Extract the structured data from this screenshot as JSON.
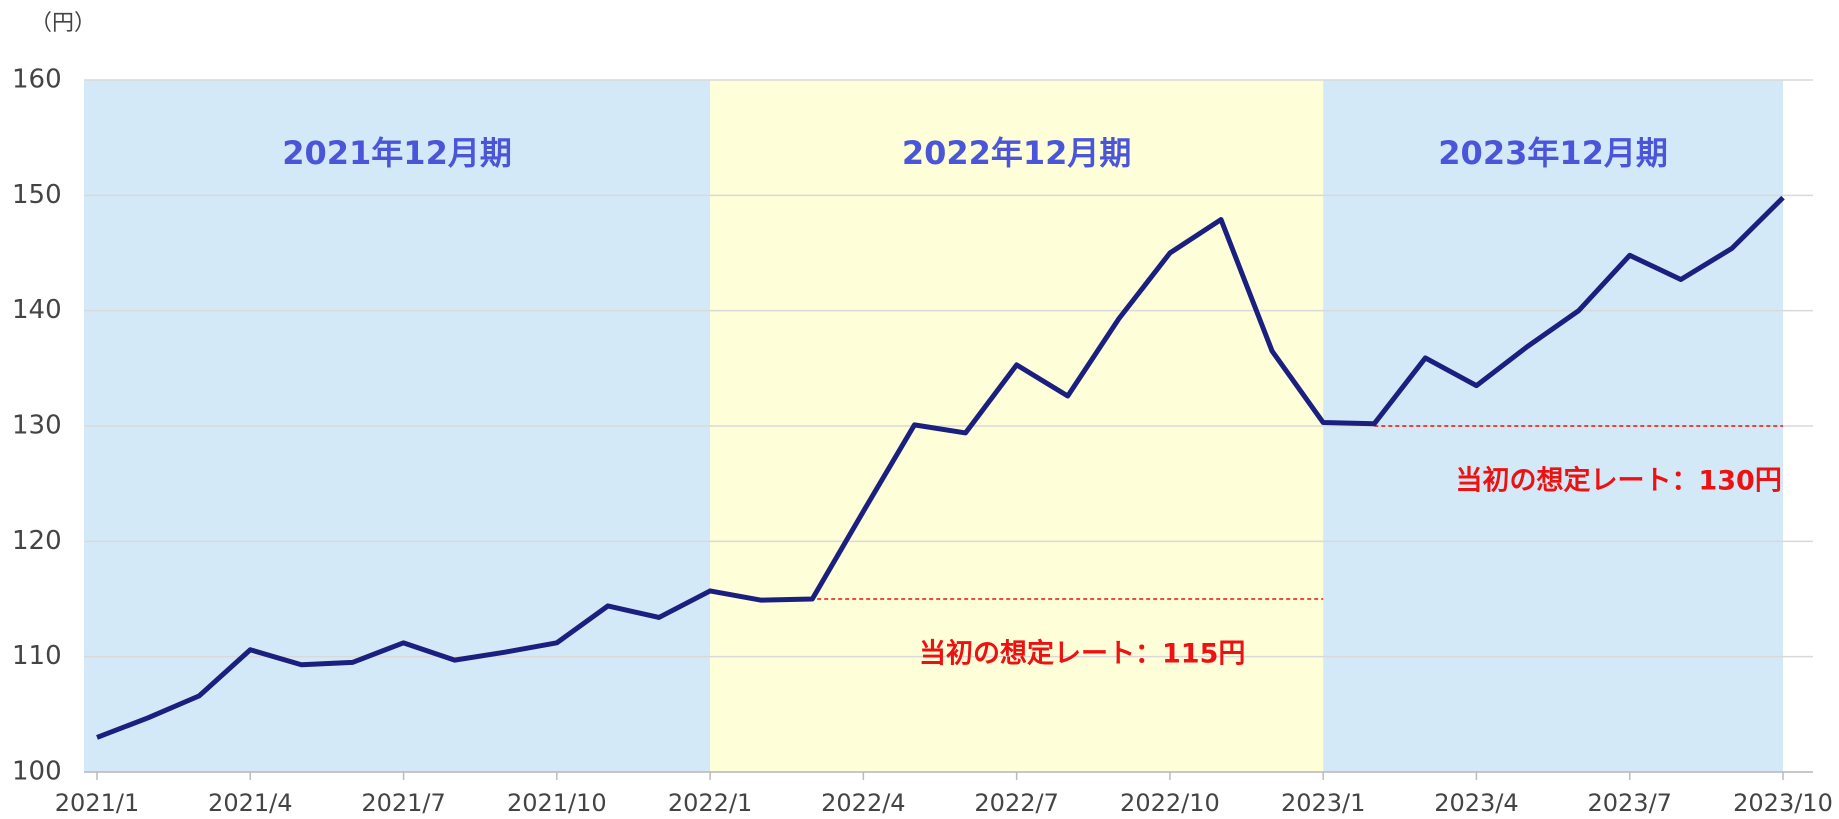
{
  "chart_data": {
    "type": "line",
    "y_axis_label": "（円）",
    "categories": [
      "2021/1",
      null,
      null,
      "2021/4",
      null,
      null,
      "2021/7",
      null,
      null,
      "2021/10",
      null,
      null,
      "2022/1",
      null,
      null,
      "2022/4",
      null,
      null,
      "2022/7",
      null,
      null,
      "2022/10",
      null,
      null,
      "2023/1",
      null,
      null,
      "2023/4",
      null,
      null,
      "2023/7",
      null,
      null,
      "2023/10"
    ],
    "series": [
      {
        "color": "#1a1f80",
        "values": [
          103.0,
          104.7,
          106.6,
          110.6,
          109.3,
          109.5,
          111.2,
          109.7,
          110.4,
          111.2,
          114.4,
          113.4,
          115.7,
          114.9,
          115.0,
          122.6,
          130.1,
          129.4,
          135.3,
          132.6,
          139.3,
          145.0,
          147.9,
          136.5,
          130.3,
          130.2,
          135.9,
          133.5,
          136.9,
          140.0,
          144.8,
          142.7,
          145.4,
          149.8
        ]
      }
    ],
    "ylim": [
      100,
      160
    ],
    "yticks": [
      100,
      110,
      120,
      130,
      140,
      150,
      160
    ],
    "grid": true,
    "periods": [
      {
        "label": "2021年12月期",
        "start": 0,
        "end": 12,
        "color": "#d4e9f7"
      },
      {
        "label": "2022年12月期",
        "start": 12,
        "end": 24,
        "color": "#fefed8"
      },
      {
        "label": "2023年12月期",
        "start": 24,
        "end": 33,
        "color": "#d4e9f7"
      }
    ],
    "reference_lines": [
      {
        "label": "当初の想定レート：115円",
        "value": 115,
        "start": 13,
        "end": 24,
        "color": "#ee1111"
      },
      {
        "label": "当初の想定レート：130円",
        "value": 130,
        "start": 25,
        "end": 33,
        "color": "#ee1111"
      }
    ]
  }
}
